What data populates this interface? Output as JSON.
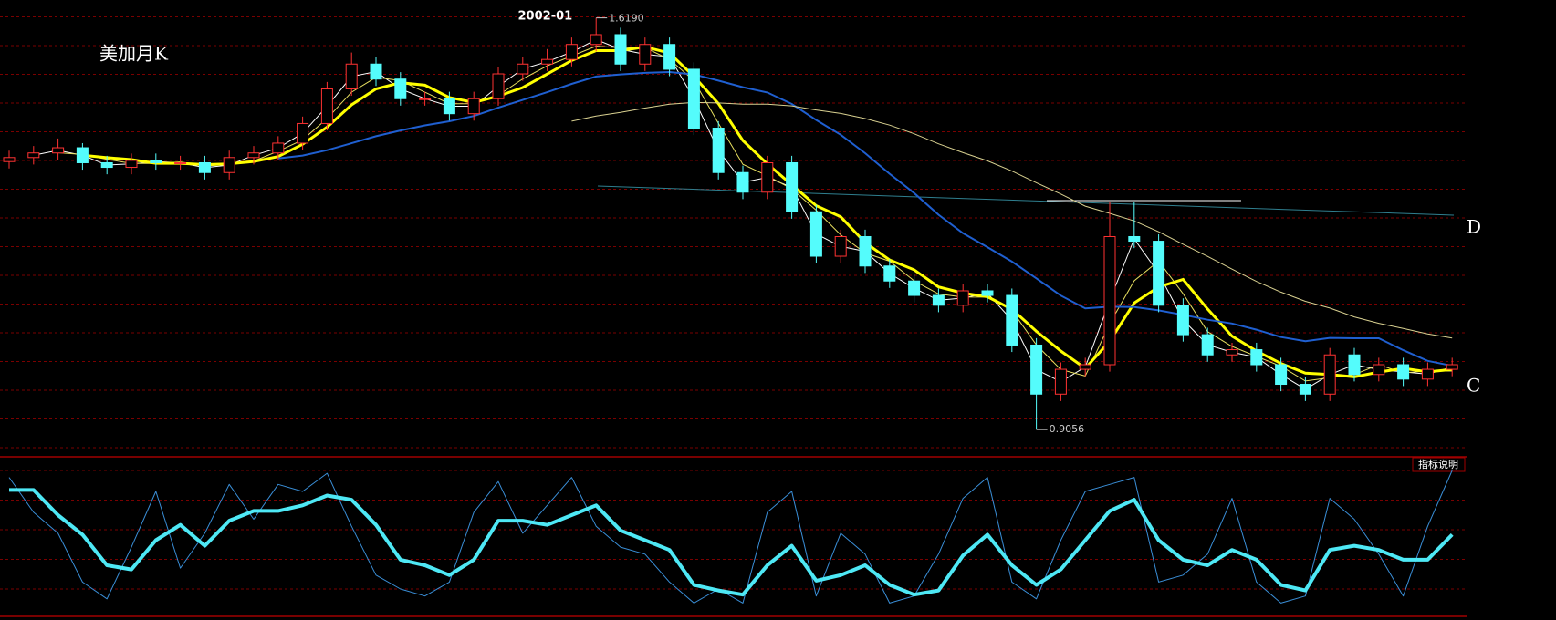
{
  "chart_data": {
    "type": "candlestick",
    "title": "美加月K",
    "categories": [
      null,
      null,
      null,
      null,
      null,
      null,
      null,
      null,
      null,
      null,
      null,
      null,
      null,
      null,
      null,
      null,
      null,
      null,
      null,
      null,
      null,
      null,
      null,
      null,
      "2002-01",
      null,
      null,
      null,
      null,
      null,
      null,
      null,
      null,
      null,
      null,
      null,
      null,
      null,
      null,
      null,
      null,
      null,
      null,
      null,
      null,
      null,
      null,
      null,
      null,
      null,
      null,
      null,
      null,
      null,
      null,
      null,
      null,
      null,
      null,
      null
    ],
    "open": [
      1.37,
      1.377,
      1.385,
      1.394,
      1.368,
      1.36,
      1.372,
      1.368,
      1.368,
      1.351,
      1.377,
      1.385,
      1.402,
      1.436,
      1.496,
      1.539,
      1.513,
      1.479,
      1.479,
      1.453,
      1.479,
      1.522,
      1.539,
      1.547,
      1.573,
      1.59,
      1.539,
      1.573,
      1.53,
      1.428,
      1.351,
      1.317,
      1.368,
      1.283,
      1.206,
      1.24,
      1.189,
      1.163,
      1.138,
      1.121,
      1.146,
      1.138,
      1.052,
      0.967,
      1.01,
      1.018,
      1.24,
      1.232,
      1.121,
      1.07,
      1.035,
      1.044,
      1.018,
      0.984,
      0.967,
      1.035,
      1.001,
      1.018,
      0.993,
      1.01
    ],
    "high": [
      1.389,
      1.397,
      1.41,
      1.402,
      1.38,
      1.384,
      1.384,
      1.38,
      1.38,
      1.389,
      1.397,
      1.414,
      1.448,
      1.508,
      1.559,
      1.551,
      1.525,
      1.491,
      1.491,
      1.491,
      1.534,
      1.551,
      1.565,
      1.585,
      1.619,
      1.602,
      1.585,
      1.585,
      1.542,
      1.44,
      1.363,
      1.38,
      1.38,
      1.295,
      1.252,
      1.252,
      1.201,
      1.175,
      1.15,
      1.158,
      1.158,
      1.15,
      1.064,
      1.022,
      1.03,
      1.3,
      1.3,
      1.244,
      1.133,
      1.082,
      1.056,
      1.056,
      1.03,
      0.996,
      1.047,
      1.047,
      1.03,
      1.03,
      1.022,
      1.03
    ],
    "low": [
      1.358,
      1.365,
      1.373,
      1.356,
      1.348,
      1.348,
      1.356,
      1.356,
      1.339,
      1.339,
      1.365,
      1.373,
      1.39,
      1.424,
      1.484,
      1.501,
      1.467,
      1.467,
      1.441,
      1.441,
      1.467,
      1.51,
      1.527,
      1.535,
      1.561,
      1.527,
      1.527,
      1.518,
      1.416,
      1.339,
      1.305,
      1.305,
      1.271,
      1.194,
      1.194,
      1.177,
      1.151,
      1.126,
      1.109,
      1.109,
      1.126,
      1.04,
      0.9056,
      0.955,
      0.998,
      1.006,
      1.22,
      1.109,
      1.058,
      1.023,
      1.023,
      1.006,
      0.972,
      0.955,
      0.955,
      0.989,
      0.989,
      0.981,
      0.981,
      0.998
    ],
    "close": [
      1.377,
      1.385,
      1.394,
      1.368,
      1.36,
      1.372,
      1.368,
      1.368,
      1.351,
      1.377,
      1.385,
      1.402,
      1.436,
      1.496,
      1.539,
      1.513,
      1.479,
      1.479,
      1.453,
      1.479,
      1.522,
      1.539,
      1.547,
      1.573,
      1.59,
      1.539,
      1.573,
      1.53,
      1.428,
      1.351,
      1.317,
      1.368,
      1.283,
      1.206,
      1.24,
      1.189,
      1.163,
      1.138,
      1.121,
      1.146,
      1.138,
      1.052,
      0.967,
      1.01,
      1.018,
      1.24,
      1.232,
      1.121,
      1.07,
      1.035,
      1.044,
      1.018,
      0.984,
      0.967,
      1.035,
      1.001,
      1.018,
      0.993,
      1.01,
      1.018
    ],
    "up_color": "#ff3232",
    "down_color": "#54fcfc",
    "ylim": [
      0.86,
      1.65
    ],
    "extremes": [
      {
        "value": 1.619,
        "label": "1.6190"
      },
      {
        "value": 0.9056,
        "label": "0.9056"
      }
    ],
    "moving_averages": [
      {
        "window": 2,
        "color": "#ffffff",
        "width": 1
      },
      {
        "window": 3,
        "color": "#e8e060",
        "width": 1
      },
      {
        "window": 4,
        "color": "#ffff00",
        "width": 3
      },
      {
        "window": 12,
        "color": "#1f5fd0",
        "width": 2
      },
      {
        "window": 24,
        "color": "#d8d090",
        "width": 1
      }
    ],
    "annotations": [
      "D",
      "C"
    ],
    "indicator": {
      "button": "指标说明",
      "ylim": [
        0,
        100
      ],
      "series": [
        {
          "color": "#3a8fd8",
          "width": 1,
          "values": [
            95,
            70,
            55,
            20,
            8,
            45,
            85,
            30,
            55,
            90,
            65,
            90,
            85,
            98,
            60,
            25,
            15,
            10,
            20,
            70,
            92,
            55,
            75,
            95,
            60,
            45,
            40,
            20,
            5,
            15,
            5,
            70,
            85,
            10,
            55,
            40,
            5,
            10,
            40,
            80,
            95,
            20,
            8,
            50,
            85,
            90,
            95,
            20,
            25,
            40,
            80,
            20,
            5,
            10,
            80,
            65,
            40,
            10,
            60,
            100
          ]
        },
        {
          "color": "#4ee8f5",
          "width": 4,
          "values": [
            86,
            86,
            68,
            54,
            32,
            29,
            50,
            61,
            46,
            64,
            71,
            71,
            75,
            82,
            79,
            61,
            36,
            32,
            25,
            36,
            64,
            64,
            61,
            68,
            75,
            57,
            50,
            43,
            18,
            14,
            11,
            32,
            46,
            21,
            25,
            32,
            18,
            11,
            14,
            39,
            54,
            32,
            18,
            29,
            50,
            71,
            79,
            50,
            36,
            32,
            43,
            36,
            18,
            14,
            43,
            46,
            43,
            36,
            36,
            54
          ]
        }
      ]
    }
  }
}
